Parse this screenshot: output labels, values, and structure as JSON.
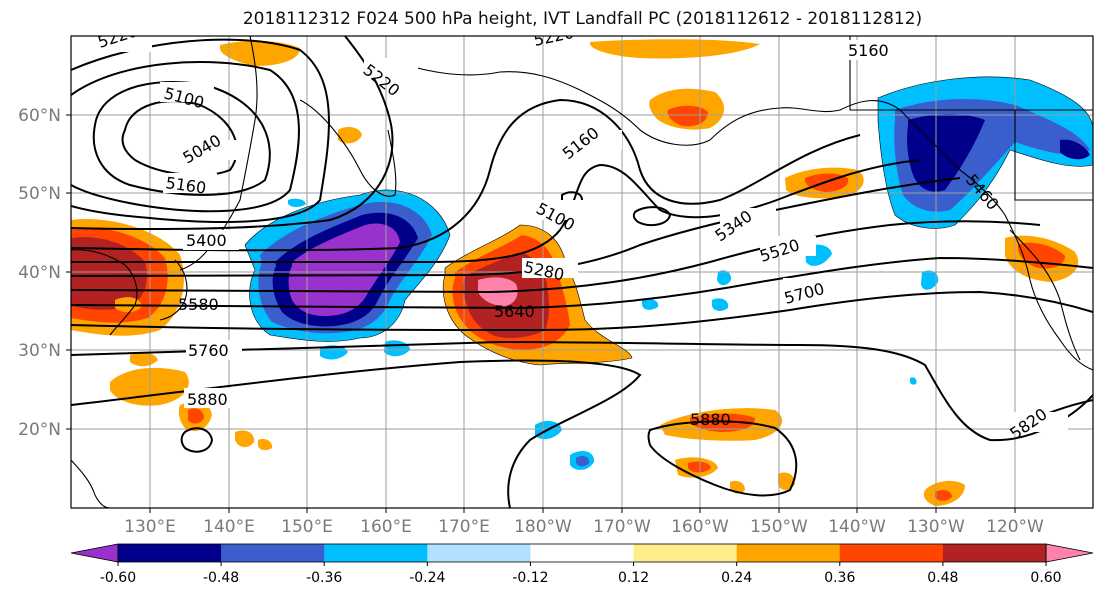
{
  "title": "2018112312 F024 500 hPa height, IVT Landfall PC (2018112612 - 2018112812)",
  "map": {
    "lat_labels": [
      "60°N",
      "50°N",
      "40°N",
      "30°N",
      "20°N"
    ],
    "lon_labels": [
      "130°E",
      "140°E",
      "150°E",
      "160°E",
      "170°E",
      "180°W",
      "170°W",
      "160°W",
      "150°W",
      "140°W",
      "130°W",
      "120°W"
    ],
    "contour_labels": [
      "5220",
      "5220",
      "5100",
      "5040",
      "5160",
      "5400",
      "5580",
      "5760",
      "5880",
      "5160",
      "5100",
      "5280",
      "5640",
      "5340",
      "5520",
      "5700",
      "5880",
      "5160",
      "5460",
      "5820",
      "5220"
    ]
  },
  "colorbar": {
    "colors": [
      "#9932CC",
      "#00008B",
      "#3A5FCD",
      "#00BFFF",
      "#B0E2FF",
      "#FFFFFF",
      "#FFEC8B",
      "#FFA500",
      "#FF4500",
      "#B22222",
      "#FF82AB"
    ],
    "ticks": [
      "-0.60",
      "-0.48",
      "-0.36",
      "-0.24",
      "-0.12",
      "0.12",
      "0.24",
      "0.36",
      "0.48",
      "0.60"
    ]
  }
}
